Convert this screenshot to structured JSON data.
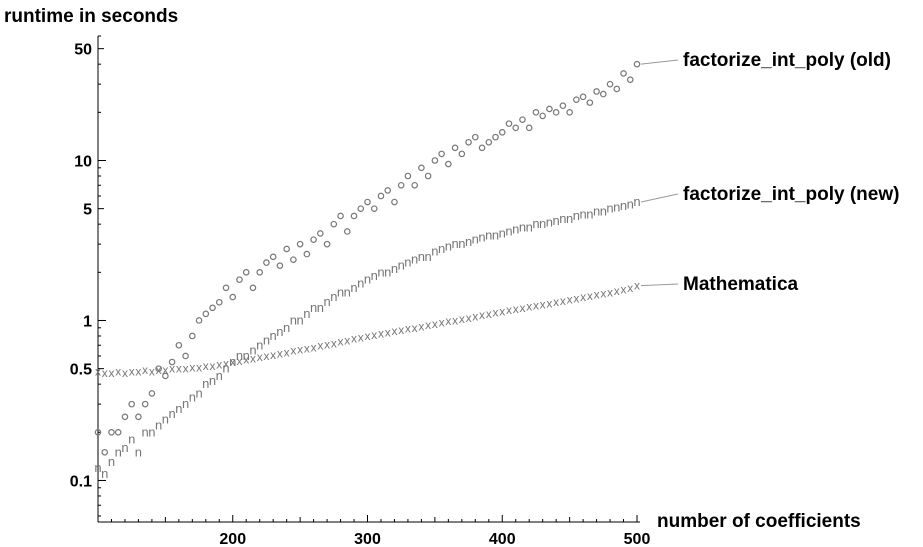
{
  "chart_data": {
    "type": "scatter",
    "ylabel": "runtime in seconds",
    "xlabel": "number of coefficients",
    "xlim": [
      100,
      500
    ],
    "ylim": [
      0.055,
      60
    ],
    "y_scale": "log",
    "x_ticks": [
      200,
      300,
      400,
      500
    ],
    "y_ticks": [
      {
        "value": 0.1,
        "label": "0.1"
      },
      {
        "value": 0.5,
        "label": "0.5"
      },
      {
        "value": 1,
        "label": "1"
      },
      {
        "value": 5,
        "label": "5"
      },
      {
        "value": 10,
        "label": "10"
      },
      {
        "value": 50,
        "label": "50"
      }
    ],
    "grid": false,
    "legend": "labels beside series at right end",
    "marker_color": "#777777",
    "series": [
      {
        "name": "factorize_int_poly (old)",
        "marker": "o",
        "x": [
          100,
          105,
          110,
          115,
          120,
          125,
          130,
          135,
          140,
          145,
          150,
          155,
          160,
          165,
          170,
          175,
          180,
          185,
          190,
          195,
          200,
          205,
          210,
          215,
          220,
          225,
          230,
          235,
          240,
          245,
          250,
          255,
          260,
          265,
          270,
          275,
          280,
          285,
          290,
          295,
          300,
          305,
          310,
          315,
          320,
          325,
          330,
          335,
          340,
          345,
          350,
          355,
          360,
          365,
          370,
          375,
          380,
          385,
          390,
          395,
          400,
          405,
          410,
          415,
          420,
          425,
          430,
          435,
          440,
          445,
          450,
          455,
          460,
          465,
          470,
          475,
          480,
          485,
          490,
          495,
          500
        ],
        "y": [
          0.2,
          0.15,
          0.2,
          0.2,
          0.25,
          0.3,
          0.25,
          0.3,
          0.35,
          0.5,
          0.45,
          0.55,
          0.7,
          0.6,
          0.8,
          1.0,
          1.1,
          1.2,
          1.3,
          1.6,
          1.4,
          1.8,
          2.0,
          1.6,
          2.0,
          2.3,
          2.5,
          2.2,
          2.8,
          2.4,
          3.0,
          2.6,
          3.2,
          3.5,
          3.0,
          4.0,
          4.5,
          3.6,
          4.5,
          5.0,
          5.5,
          5.0,
          6.0,
          6.5,
          5.5,
          7.0,
          8.0,
          7.0,
          9.0,
          8.0,
          10.0,
          11.0,
          9.5,
          12.0,
          11.0,
          13.0,
          14.0,
          12.0,
          13.0,
          14.0,
          15.0,
          17.0,
          16.0,
          18.0,
          16.0,
          20.0,
          19.0,
          21.0,
          20.0,
          22.0,
          20.0,
          24.0,
          25.0,
          23.0,
          27.0,
          26.0,
          30.0,
          28.0,
          35.0,
          32.0,
          40.0
        ]
      },
      {
        "name": "factorize_int_poly (new)",
        "marker": "n",
        "x": [
          100,
          105,
          110,
          115,
          120,
          125,
          130,
          135,
          140,
          145,
          150,
          155,
          160,
          165,
          170,
          175,
          180,
          185,
          190,
          195,
          200,
          205,
          210,
          215,
          220,
          225,
          230,
          235,
          240,
          245,
          250,
          255,
          260,
          265,
          270,
          275,
          280,
          285,
          290,
          295,
          300,
          305,
          310,
          315,
          320,
          325,
          330,
          335,
          340,
          345,
          350,
          355,
          360,
          365,
          370,
          375,
          380,
          385,
          390,
          395,
          400,
          405,
          410,
          415,
          420,
          425,
          430,
          435,
          440,
          445,
          450,
          455,
          460,
          465,
          470,
          475,
          480,
          485,
          490,
          495,
          500
        ],
        "y": [
          0.12,
          0.11,
          0.13,
          0.15,
          0.16,
          0.18,
          0.15,
          0.2,
          0.2,
          0.22,
          0.24,
          0.26,
          0.28,
          0.3,
          0.33,
          0.35,
          0.4,
          0.42,
          0.45,
          0.5,
          0.55,
          0.6,
          0.6,
          0.65,
          0.7,
          0.75,
          0.8,
          0.85,
          0.9,
          1.0,
          1.0,
          1.1,
          1.2,
          1.2,
          1.3,
          1.4,
          1.5,
          1.5,
          1.6,
          1.7,
          1.8,
          1.9,
          2.0,
          2.0,
          2.1,
          2.2,
          2.3,
          2.4,
          2.5,
          2.5,
          2.7,
          2.8,
          2.9,
          3.0,
          3.0,
          3.1,
          3.2,
          3.3,
          3.4,
          3.4,
          3.5,
          3.6,
          3.7,
          3.8,
          3.8,
          4.0,
          4.0,
          4.1,
          4.2,
          4.3,
          4.3,
          4.5,
          4.6,
          4.6,
          4.8,
          4.8,
          5.0,
          5.1,
          5.2,
          5.3,
          5.5
        ]
      },
      {
        "name": "Mathematica",
        "marker": "x",
        "x": [
          100,
          105,
          110,
          115,
          120,
          125,
          130,
          135,
          140,
          145,
          150,
          155,
          160,
          165,
          170,
          175,
          180,
          185,
          190,
          195,
          200,
          205,
          210,
          215,
          220,
          225,
          230,
          235,
          240,
          245,
          250,
          255,
          260,
          265,
          270,
          275,
          280,
          285,
          290,
          295,
          300,
          305,
          310,
          315,
          320,
          325,
          330,
          335,
          340,
          345,
          350,
          355,
          360,
          365,
          370,
          375,
          380,
          385,
          390,
          395,
          400,
          405,
          410,
          415,
          420,
          425,
          430,
          435,
          440,
          445,
          450,
          455,
          460,
          465,
          470,
          475,
          480,
          485,
          490,
          495,
          500
        ],
        "y": [
          0.48,
          0.47,
          0.47,
          0.48,
          0.47,
          0.48,
          0.48,
          0.49,
          0.48,
          0.49,
          0.49,
          0.5,
          0.5,
          0.5,
          0.51,
          0.51,
          0.52,
          0.52,
          0.53,
          0.54,
          0.55,
          0.56,
          0.57,
          0.58,
          0.59,
          0.6,
          0.61,
          0.62,
          0.63,
          0.65,
          0.66,
          0.67,
          0.68,
          0.7,
          0.71,
          0.72,
          0.74,
          0.75,
          0.77,
          0.78,
          0.8,
          0.81,
          0.83,
          0.84,
          0.86,
          0.87,
          0.89,
          0.9,
          0.92,
          0.94,
          0.95,
          0.97,
          0.99,
          1.0,
          1.02,
          1.04,
          1.06,
          1.08,
          1.1,
          1.12,
          1.14,
          1.16,
          1.18,
          1.2,
          1.22,
          1.24,
          1.26,
          1.28,
          1.3,
          1.32,
          1.35,
          1.37,
          1.4,
          1.42,
          1.45,
          1.47,
          1.5,
          1.53,
          1.56,
          1.6,
          1.65
        ]
      }
    ]
  }
}
